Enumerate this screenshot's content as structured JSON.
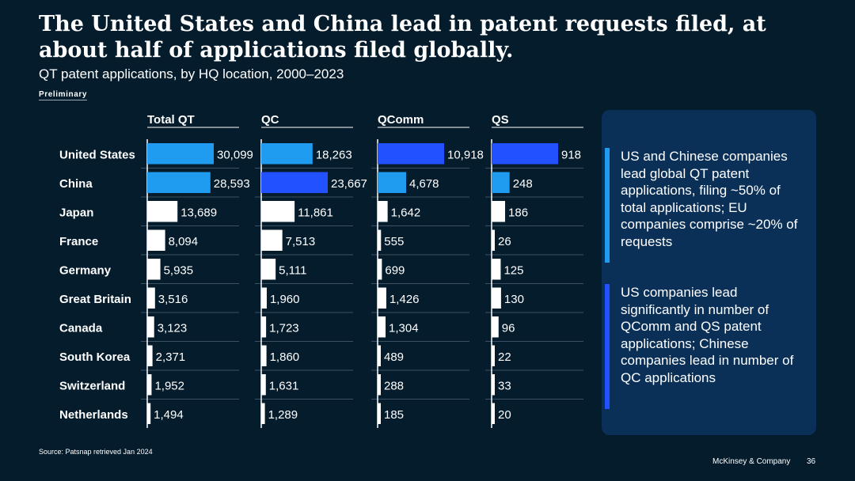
{
  "title": "The United States and China lead in patent requests filed, at about half of applications filed globally.",
  "subtitle": "QT patent applications, by HQ location, 2000–2023",
  "preliminary_label": "Preliminary",
  "chart_data": {
    "type": "bar",
    "orientation": "horizontal",
    "categories": [
      "United States",
      "China",
      "Japan",
      "France",
      "Germany",
      "Great Britain",
      "Canada",
      "South Korea",
      "Switzerland",
      "Netherlands"
    ],
    "series": [
      {
        "name": "Total QT",
        "values": [
          30099,
          28593,
          13689,
          8094,
          5935,
          3516,
          3123,
          2371,
          1952,
          1494
        ],
        "labels": [
          "30,099",
          "28,593",
          "13,689",
          "8,094",
          "5,935",
          "3,516",
          "3,123",
          "2,371",
          "1,952",
          "1,494"
        ],
        "max": 30099,
        "highlight_colors": [
          "#1f9bf0",
          "#1f9bf0"
        ]
      },
      {
        "name": "QC",
        "values": [
          18263,
          23667,
          11861,
          7513,
          5111,
          1960,
          1723,
          1860,
          1631,
          1289
        ],
        "labels": [
          "18,263",
          "23,667",
          "11,861",
          "7,513",
          "5,111",
          "1,960",
          "1,723",
          "1,860",
          "1,631",
          "1,289"
        ],
        "max": 23667,
        "highlight_colors": [
          "#1f9bf0",
          "#2251ff"
        ]
      },
      {
        "name": "QComm",
        "values": [
          10918,
          4678,
          1642,
          555,
          699,
          1426,
          1304,
          489,
          288,
          185
        ],
        "labels": [
          "10,918",
          "4,678",
          "1,642",
          "555",
          "699",
          "1,426",
          "1,304",
          "489",
          "288",
          "185"
        ],
        "max": 10918,
        "highlight_colors": [
          "#2251ff",
          "#1f9bf0"
        ]
      },
      {
        "name": "QS",
        "values": [
          918,
          248,
          186,
          26,
          125,
          130,
          96,
          22,
          33,
          20
        ],
        "labels": [
          "918",
          "248",
          "186",
          "26",
          "125",
          "130",
          "96",
          "22",
          "33",
          "20"
        ],
        "max": 918,
        "highlight_colors": [
          "#2251ff",
          "#1f9bf0"
        ]
      }
    ],
    "default_bar_color": "#ffffff",
    "grid": false
  },
  "notes": [
    {
      "text": "US and Chinese companies lead global QT patent applications, filing ~50% of total applications; EU companies comprise ~20% of requests",
      "color": "#1f9bf0"
    },
    {
      "text": "US companies lead significantly in number of QComm and QS patent applications; Chinese companies lead in number of QC applications",
      "color": "#2251ff"
    }
  ],
  "source": "Source: Patsnap retrieved Jan 2024",
  "brand": "McKinsey & Company",
  "page_number": "36"
}
